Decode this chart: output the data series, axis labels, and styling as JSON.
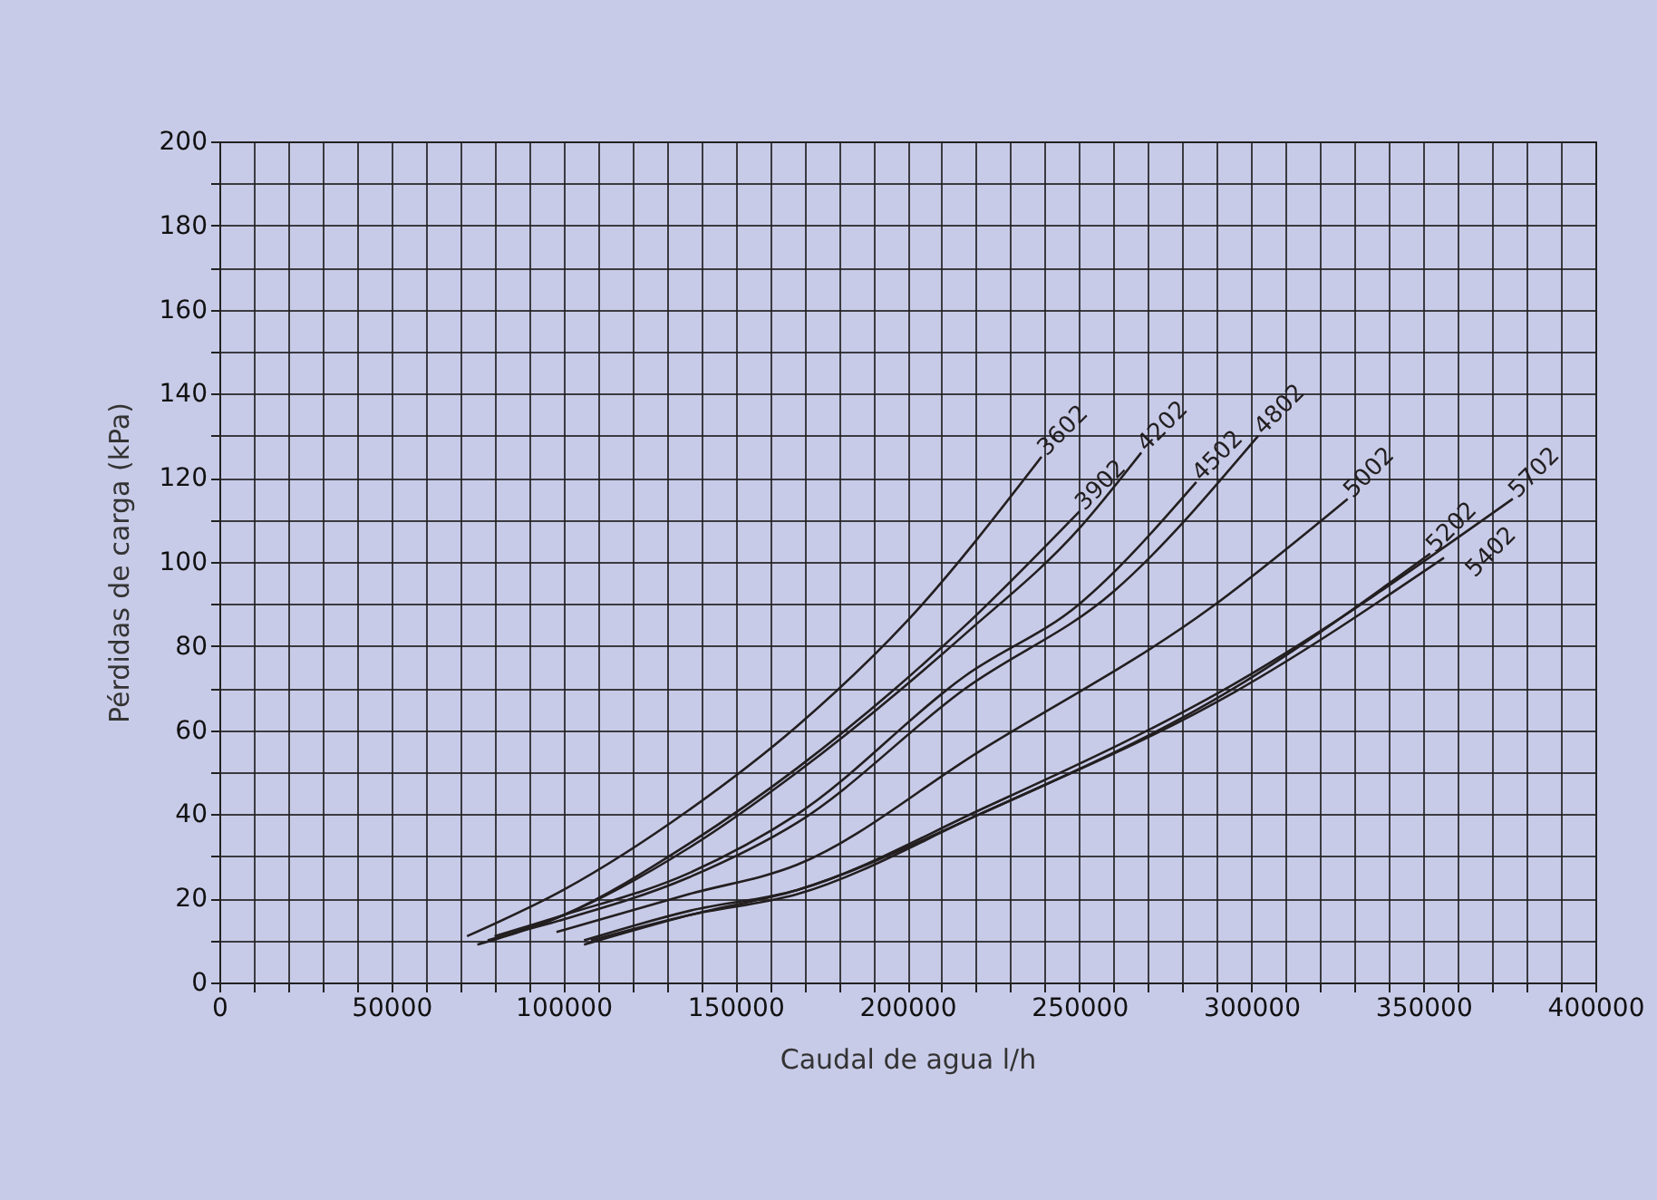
{
  "chart_data": {
    "type": "line",
    "xlabel": "Caudal de agua l/h",
    "ylabel": "Pérdidas de carga (kPa)",
    "xlim": [
      0,
      400000
    ],
    "ylim": [
      0,
      200
    ],
    "xticks": [
      0,
      {
        "value": 10000,
        "label": null
      },
      {
        "value": 20000,
        "label": null
      },
      {
        "value": 30000,
        "label": null
      },
      {
        "value": 40000,
        "label": null
      },
      50000,
      {
        "value": 60000,
        "label": null
      },
      {
        "value": 70000,
        "label": null
      },
      {
        "value": 80000,
        "label": null
      },
      {
        "value": 90000,
        "label": null
      },
      100000,
      {
        "value": 110000,
        "label": null
      },
      {
        "value": 120000,
        "label": null
      },
      {
        "value": 130000,
        "label": null
      },
      {
        "value": 140000,
        "label": null
      },
      150000,
      {
        "value": 160000,
        "label": null
      },
      {
        "value": 170000,
        "label": null
      },
      {
        "value": 180000,
        "label": null
      },
      {
        "value": 190000,
        "label": null
      },
      200000,
      {
        "value": 210000,
        "label": null
      },
      {
        "value": 220000,
        "label": null
      },
      {
        "value": 230000,
        "label": null
      },
      {
        "value": 240000,
        "label": null
      },
      250000,
      {
        "value": 260000,
        "label": null
      },
      {
        "value": 270000,
        "label": null
      },
      {
        "value": 280000,
        "label": null
      },
      {
        "value": 290000,
        "label": null
      },
      300000,
      {
        "value": 310000,
        "label": null
      },
      {
        "value": 320000,
        "label": null
      },
      {
        "value": 330000,
        "label": null
      },
      {
        "value": 340000,
        "label": null
      },
      350000,
      {
        "value": 360000,
        "label": null
      },
      {
        "value": 370000,
        "label": null
      },
      {
        "value": 380000,
        "label": null
      },
      {
        "value": 390000,
        "label": null
      },
      400000
    ],
    "yticks": [
      0,
      {
        "value": 10,
        "label": null
      },
      20,
      {
        "value": 30,
        "label": null
      },
      40,
      {
        "value": 50,
        "label": null
      },
      60,
      {
        "value": 70,
        "label": null
      },
      80,
      {
        "value": 90,
        "label": null
      },
      100,
      {
        "value": 110,
        "label": null
      },
      120,
      {
        "value": 130,
        "label": null
      },
      140,
      {
        "value": 150,
        "label": null
      },
      160,
      {
        "value": 170,
        "label": null
      },
      180,
      {
        "value": 190,
        "label": null
      },
      200
    ],
    "grid": true,
    "legend": false,
    "marker": "none",
    "line_style": "solid",
    "series": [
      {
        "name": "3602",
        "color": "#231f20",
        "x": [
          72000,
          100000,
          136500,
          168000,
          200000,
          239000
        ],
        "values": [
          11,
          22,
          41,
          61,
          86,
          125
        ]
      },
      {
        "name": "3902",
        "color": "#231f20",
        "x": [
          75000,
          100000,
          136500,
          168000,
          217000,
          250000
        ],
        "values": [
          9,
          16,
          33,
          51,
          85,
          112
        ]
      },
      {
        "name": "4202",
        "color": "#231f20",
        "x": [
          78000,
          100000,
          136500,
          168000,
          217000,
          250000,
          268000
        ],
        "values": [
          10,
          16,
          32,
          50,
          83,
          108,
          126
        ]
      },
      {
        "name": "4502",
        "color": "#231f20",
        "x": [
          80000,
          100000,
          136500,
          168000,
          217000,
          250000,
          284000
        ],
        "values": [
          11,
          16,
          26,
          40,
          73,
          90,
          119
        ]
      },
      {
        "name": "4802",
        "color": "#231f20",
        "x": [
          82000,
          100000,
          136500,
          168000,
          217000,
          260000,
          302000
        ],
        "values": [
          11,
          15,
          25,
          38,
          70,
          93,
          130
        ]
      },
      {
        "name": "5002",
        "color": "#231f20",
        "x": [
          98000,
          136500,
          168000,
          221000,
          288000,
          328000
        ],
        "values": [
          12,
          21,
          28,
          55,
          89,
          115
        ]
      },
      {
        "name": "5202",
        "color": "#231f20",
        "x": [
          106000,
          136500,
          168000,
          221000,
          295000,
          352000
        ],
        "values": [
          9,
          16,
          22,
          40,
          70,
          102
        ]
      },
      {
        "name": "5402",
        "color": "#231f20",
        "x": [
          108000,
          136500,
          168000,
          221000,
          295000,
          356000
        ],
        "values": [
          10,
          16,
          21,
          40,
          69,
          101
        ]
      },
      {
        "name": "5702",
        "color": "#231f20",
        "x": [
          106000,
          136500,
          168000,
          221000,
          295000,
          376000
        ],
        "values": [
          10,
          17,
          22,
          41,
          71,
          115
        ]
      }
    ]
  }
}
